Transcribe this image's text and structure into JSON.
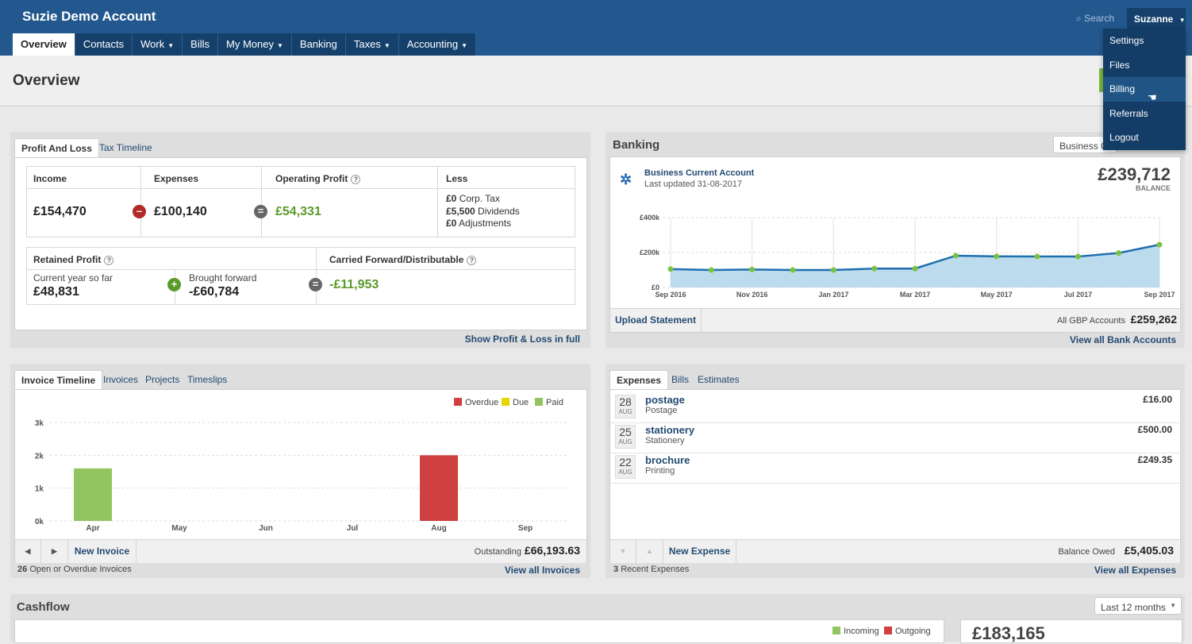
{
  "header": {
    "account_name": "Suzie Demo Account",
    "search_label": "Search",
    "user_label": "Suzanne"
  },
  "nav": [
    {
      "label": "Overview",
      "dropdown": false,
      "active": true
    },
    {
      "label": "Contacts",
      "dropdown": false
    },
    {
      "label": "Work",
      "dropdown": true
    },
    {
      "label": "Bills",
      "dropdown": false
    },
    {
      "label": "My Money",
      "dropdown": true
    },
    {
      "label": "Banking",
      "dropdown": false
    },
    {
      "label": "Taxes",
      "dropdown": true
    },
    {
      "label": "Accounting",
      "dropdown": true
    }
  ],
  "user_menu": [
    "Settings",
    "Files",
    "Billing",
    "Referrals",
    "Logout"
  ],
  "user_menu_hover": "Billing",
  "page": {
    "title": "Overview"
  },
  "pnl": {
    "tabs": [
      "Profit And Loss",
      "Tax Timeline"
    ],
    "income_label": "Income",
    "income_value": "£154,470",
    "expenses_label": "Expenses",
    "expenses_value": "£100,140",
    "op_profit_label": "Operating Profit",
    "op_profit_value": "£54,331",
    "less_label": "Less",
    "less_lines": [
      {
        "amount": "£0",
        "label": "Corp. Tax"
      },
      {
        "amount": "£5,500",
        "label": "Dividends"
      },
      {
        "amount": "£0",
        "label": "Adjustments"
      }
    ],
    "retained_label": "Retained Profit",
    "current_label": "Current year so far",
    "current_value": "£48,831",
    "brought_label": "Brought forward",
    "brought_value": "-£60,784",
    "carried_label": "Carried Forward/Distributable",
    "carried_value": "-£11,953",
    "show_link": "Show Profit & Loss in full"
  },
  "banking": {
    "title": "Banking",
    "account_select": "Business C",
    "account_name": "Business Current Account",
    "last_updated": "Last updated 31-08-2017",
    "balance": "£239,712",
    "balance_label": "BALANCE",
    "upload_button": "Upload Statement",
    "all_accounts_label": "All GBP Accounts",
    "all_accounts_value": "£259,262",
    "view_all_link": "View all Bank Accounts"
  },
  "invoices": {
    "tabs": [
      "Invoice Timeline",
      "Invoices",
      "Projects",
      "Timeslips"
    ],
    "new_button": "New Invoice",
    "outstanding_label": "Outstanding",
    "outstanding_value": "£66,193.63",
    "open_count": "26",
    "open_label": "Open or Overdue Invoices",
    "view_all_link": "View all Invoices"
  },
  "expenses": {
    "tabs": [
      "Expenses",
      "Bills",
      "Estimates"
    ],
    "items": [
      {
        "day": "28",
        "month": "AUG",
        "title": "postage",
        "category": "Postage",
        "amount": "£16.00"
      },
      {
        "day": "25",
        "month": "AUG",
        "title": "stationery",
        "category": "Stationery",
        "amount": "£500.00"
      },
      {
        "day": "22",
        "month": "AUG",
        "title": "brochure",
        "category": "Printing",
        "amount": "£249.35"
      }
    ],
    "new_button": "New Expense",
    "balance_label": "Balance Owed",
    "balance_value": "£5,405.03",
    "recent_count": "3",
    "recent_label": "Recent Expenses",
    "view_all_link": "View all Expenses"
  },
  "cashflow": {
    "title": "Cashflow",
    "period": "Last 12 months",
    "legend": [
      "Incoming",
      "Outgoing"
    ],
    "value": "£183,165"
  },
  "colors": {
    "brand": "#23588e",
    "nav_dark": "#15406b",
    "overdue": "#d04040",
    "due": "#e8d400",
    "paid": "#92c460",
    "line": "#1f6fb0",
    "area": "#bcdcee"
  },
  "chart_data": [
    {
      "type": "area",
      "x": [
        "2016-09",
        "2016-10",
        "2016-11",
        "2016-12",
        "2017-01",
        "2017-02",
        "2017-03",
        "2017-04",
        "2017-05",
        "2017-06",
        "2017-07",
        "2017-08",
        "2017-09"
      ],
      "x_tick_labels": [
        "Sep 2016",
        "Nov 2016",
        "Jan 2017",
        "Mar 2017",
        "May 2017",
        "Jul 2017",
        "Sep 2017"
      ],
      "y_tick_labels": [
        "£0",
        "£200k",
        "£400k"
      ],
      "ylim": [
        0,
        400000
      ],
      "series": [
        {
          "values": [
            105000,
            100000,
            103000,
            100000,
            100000,
            108000,
            108000,
            182000,
            178000,
            177000,
            177000,
            197000,
            245000
          ]
        }
      ],
      "grid": true
    },
    {
      "type": "bar",
      "categories": [
        "Apr",
        "May",
        "Jun",
        "Jul",
        "Aug",
        "Sep"
      ],
      "y_tick_labels": [
        "0k",
        "1k",
        "2k",
        "3k"
      ],
      "ylim": [
        0,
        3000
      ],
      "legend_position": "top-right",
      "series": [
        {
          "name": "Overdue",
          "values": [
            0,
            0,
            0,
            0,
            2000,
            0
          ]
        },
        {
          "name": "Due",
          "values": [
            0,
            0,
            0,
            0,
            0,
            0
          ]
        },
        {
          "name": "Paid",
          "values": [
            1600,
            0,
            0,
            0,
            0,
            0
          ]
        }
      ],
      "grid": true
    }
  ]
}
